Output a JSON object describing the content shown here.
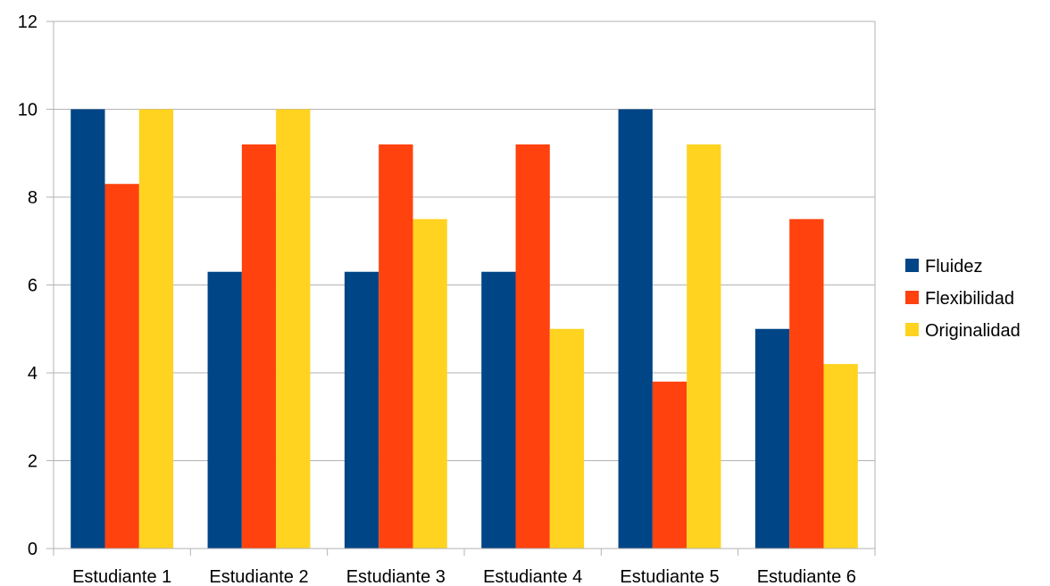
{
  "chart_data": {
    "type": "bar",
    "title": "",
    "xlabel": "",
    "ylabel": "",
    "categories": [
      "Estudiante 1",
      "Estudiante 2",
      "Estudiante 3",
      "Estudiante 4",
      "Estudiante 5",
      "Estudiante 6"
    ],
    "series": [
      {
        "name": "Fluidez",
        "color": "#004586",
        "values": [
          10,
          6.3,
          6.3,
          6.3,
          10,
          5
        ]
      },
      {
        "name": "Flexibilidad",
        "color": "#ff420e",
        "values": [
          8.3,
          9.2,
          9.2,
          9.2,
          3.8,
          7.5
        ]
      },
      {
        "name": "Originalidad",
        "color": "#ffd320",
        "values": [
          10,
          10,
          7.5,
          5,
          9.2,
          4.2
        ]
      }
    ],
    "ylim": [
      0,
      12
    ],
    "yticks": [
      0,
      2,
      4,
      6,
      8,
      10,
      12
    ],
    "grid": true,
    "legend_position": "right"
  }
}
